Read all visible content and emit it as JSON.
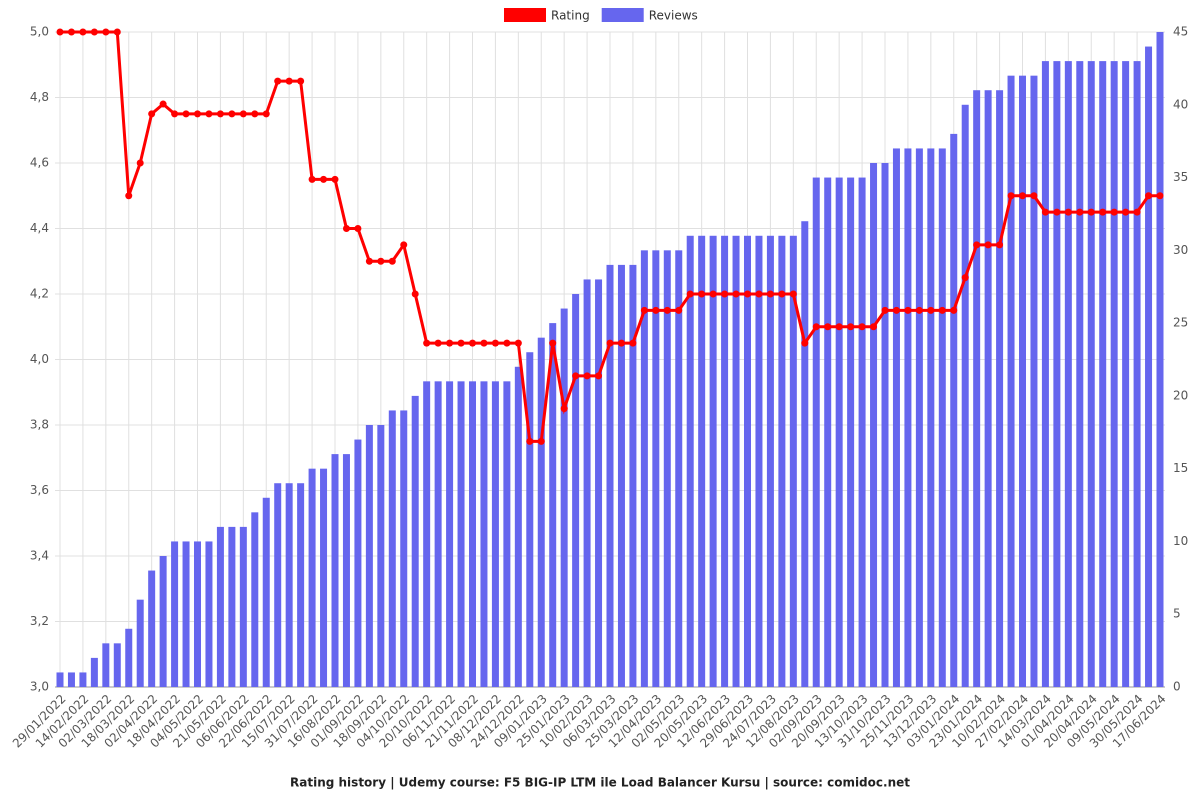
{
  "chart_data": {
    "type": "bar-line",
    "title": "Rating history | Udemy course: F5 BIG-IP LTM ile Load Balancer Kursu | source: comidoc.net",
    "categories": [
      "29/01/2022",
      null,
      "14/02/2022",
      null,
      "02/03/2022",
      null,
      "18/03/2022",
      null,
      "02/04/2022",
      null,
      "18/04/2022",
      null,
      "04/05/2022",
      null,
      "21/05/2022",
      null,
      "06/06/2022",
      null,
      "22/06/2022",
      null,
      "15/07/2022",
      null,
      "31/07/2022",
      null,
      "16/08/2022",
      null,
      "01/09/2022",
      null,
      "18/09/2022",
      null,
      "04/10/2022",
      null,
      "20/10/2022",
      null,
      "06/11/2022",
      null,
      "21/11/2022",
      null,
      "08/12/2022",
      null,
      "24/12/2022",
      null,
      "09/01/2023",
      null,
      "25/01/2023",
      null,
      "10/02/2023",
      null,
      "06/03/2023",
      null,
      "25/03/2023",
      null,
      "12/04/2023",
      null,
      "02/05/2023",
      null,
      "20/05/2023",
      null,
      "12/06/2023",
      null,
      "29/06/2023",
      null,
      "24/07/2023",
      null,
      "12/08/2023",
      null,
      "02/09/2023",
      null,
      "20/09/2023",
      null,
      "13/10/2023",
      null,
      "31/10/2023",
      null,
      "25/11/2023",
      null,
      "13/12/2023",
      null,
      "03/01/2024",
      null,
      "23/01/2024",
      null,
      "10/02/2024",
      null,
      "27/02/2024",
      null,
      "14/03/2024",
      null,
      "01/04/2024",
      null,
      "20/04/2024",
      null,
      "09/05/2024",
      null,
      "30/05/2024",
      null,
      "17/06/2024"
    ],
    "series": [
      {
        "name": "Rating",
        "color": "#ff0000",
        "axis": "y",
        "kind": "line",
        "values": [
          5.0,
          5.0,
          5.0,
          5.0,
          5.0,
          5.0,
          4.5,
          4.6,
          4.75,
          4.78,
          4.75,
          4.75,
          4.75,
          4.75,
          4.75,
          4.75,
          4.75,
          4.75,
          4.75,
          4.85,
          4.85,
          4.85,
          4.55,
          4.55,
          4.55,
          4.4,
          4.4,
          4.3,
          4.3,
          4.3,
          4.35,
          4.2,
          4.05,
          4.05,
          4.05,
          4.05,
          4.05,
          4.05,
          4.05,
          4.05,
          4.05,
          3.75,
          3.75,
          4.05,
          3.85,
          3.95,
          3.95,
          3.95,
          4.05,
          4.05,
          4.05,
          4.15,
          4.15,
          4.15,
          4.15,
          4.2,
          4.2,
          4.2,
          4.2,
          4.2,
          4.2,
          4.2,
          4.2,
          4.2,
          4.2,
          4.05,
          4.1,
          4.1,
          4.1,
          4.1,
          4.1,
          4.1,
          4.15,
          4.15,
          4.15,
          4.15,
          4.15,
          4.15,
          4.15,
          4.25,
          4.35,
          4.35,
          4.35,
          4.5,
          4.5,
          4.5,
          4.45,
          4.45,
          4.45,
          4.45,
          4.45,
          4.45,
          4.45,
          4.45,
          4.45,
          4.5,
          4.5
        ]
      },
      {
        "name": "Reviews",
        "color": "#6666ee",
        "axis": "y2",
        "kind": "bar",
        "values": [
          1,
          1,
          1,
          2,
          3,
          3,
          4,
          6,
          8,
          9,
          10,
          10,
          10,
          10,
          11,
          11,
          11,
          12,
          13,
          14,
          14,
          14,
          15,
          15,
          16,
          16,
          17,
          18,
          18,
          19,
          19,
          20,
          21,
          21,
          21,
          21,
          21,
          21,
          21,
          21,
          22,
          23,
          24,
          25,
          26,
          27,
          28,
          28,
          29,
          29,
          29,
          30,
          30,
          30,
          30,
          31,
          31,
          31,
          31,
          31,
          31,
          31,
          31,
          31,
          31,
          32,
          35,
          35,
          35,
          35,
          35,
          36,
          36,
          37,
          37,
          37,
          37,
          37,
          38,
          40,
          41,
          41,
          41,
          42,
          42,
          42,
          43,
          43,
          43,
          43,
          43,
          43,
          43,
          43,
          43,
          44,
          45
        ]
      }
    ],
    "ylim": [
      3.0,
      5.0
    ],
    "yticks": [
      {
        "value": 3.0,
        "label": "3,0"
      },
      {
        "value": 3.2,
        "label": "3,2"
      },
      {
        "value": 3.4,
        "label": "3,4"
      },
      {
        "value": 3.6,
        "label": "3,6"
      },
      {
        "value": 3.8,
        "label": "3,8"
      },
      {
        "value": 4.0,
        "label": "4,0"
      },
      {
        "value": 4.2,
        "label": "4,2"
      },
      {
        "value": 4.4,
        "label": "4,4"
      },
      {
        "value": 4.6,
        "label": "4,6"
      },
      {
        "value": 4.8,
        "label": "4,8"
      },
      {
        "value": 5.0,
        "label": "5,0"
      }
    ],
    "y2lim": [
      0,
      45
    ],
    "y2ticks": [
      0,
      5,
      10,
      15,
      20,
      25,
      30,
      35,
      40,
      45
    ],
    "grid": true,
    "legend": "top"
  }
}
